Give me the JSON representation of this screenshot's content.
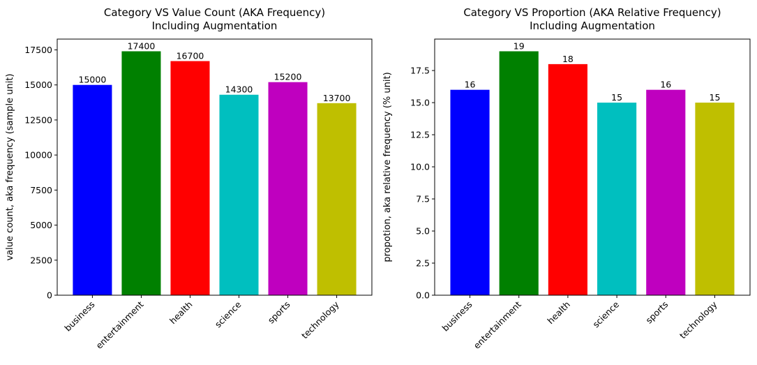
{
  "chart_data": [
    {
      "type": "bar",
      "title": "Category VS Value Count (AKA Frequency)\nIncluding Augmentation",
      "xlabel": "",
      "ylabel": "value count, aka frequency (sample unit)",
      "categories": [
        "business",
        "entertainment",
        "health",
        "science",
        "sports",
        "technology"
      ],
      "values": [
        15000,
        17400,
        16700,
        14300,
        15200,
        13700
      ],
      "data_labels": [
        "15000",
        "17400",
        "16700",
        "14300",
        "15200",
        "13700"
      ],
      "colors": [
        "#0000ff",
        "#008000",
        "#ff0000",
        "#00bfbf",
        "#bf00bf",
        "#bfbf00"
      ],
      "ylim": [
        0,
        18270
      ],
      "yticks": [
        0,
        2500,
        5000,
        7500,
        10000,
        12500,
        15000,
        17500
      ],
      "ytick_labels": [
        "0",
        "2500",
        "5000",
        "7500",
        "10000",
        "12500",
        "15000",
        "17500"
      ],
      "grid": false,
      "xtick_rotation": 45
    },
    {
      "type": "bar",
      "title": "Category VS Proportion (AKA Relative Frequency)\nIncluding Augmentation",
      "xlabel": "",
      "ylabel": "propotion, aka relative frequency (% unit)",
      "categories": [
        "business",
        "entertainment",
        "health",
        "science",
        "sports",
        "technology"
      ],
      "values": [
        16,
        19,
        18,
        15,
        16,
        15
      ],
      "data_labels": [
        "16",
        "19",
        "18",
        "15",
        "16",
        "15"
      ],
      "colors": [
        "#0000ff",
        "#008000",
        "#ff0000",
        "#00bfbf",
        "#bf00bf",
        "#bfbf00"
      ],
      "ylim": [
        0,
        19.95
      ],
      "yticks": [
        0,
        2.5,
        5,
        7.5,
        10,
        12.5,
        15,
        17.5
      ],
      "ytick_labels": [
        "0.0",
        "2.5",
        "5.0",
        "7.5",
        "10.0",
        "12.5",
        "15.0",
        "17.5"
      ],
      "grid": false,
      "xtick_rotation": 45
    }
  ]
}
